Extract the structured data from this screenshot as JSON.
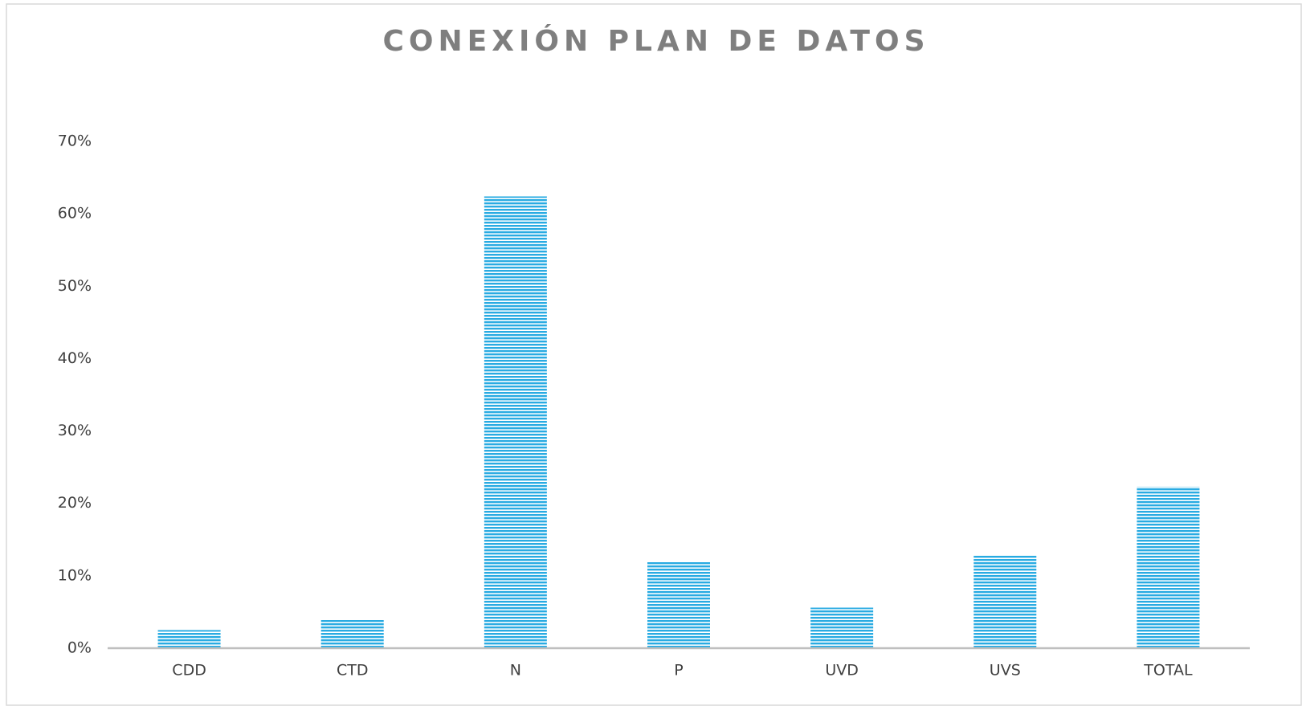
{
  "chart_data": {
    "type": "bar",
    "title": "CONEXIÓN PLAN DE DATOS",
    "categories": [
      "CDD",
      "CTD",
      "N",
      "P",
      "UVD",
      "UVS",
      "TOTAL"
    ],
    "values": [
      2.5,
      3.9,
      62.4,
      11.9,
      5.6,
      12.9,
      22.3
    ],
    "color": "#29abe2",
    "ylim": [
      0,
      70
    ],
    "yticks": [
      {
        "value": 0,
        "label": "0%"
      },
      {
        "value": 10,
        "label": "10%"
      },
      {
        "value": 20,
        "label": "20%"
      },
      {
        "value": 30,
        "label": "30%"
      },
      {
        "value": 40,
        "label": "40%"
      },
      {
        "value": 50,
        "label": "50%"
      },
      {
        "value": 60,
        "label": "60%"
      },
      {
        "value": 70,
        "label": "70%"
      }
    ],
    "grid": false
  }
}
